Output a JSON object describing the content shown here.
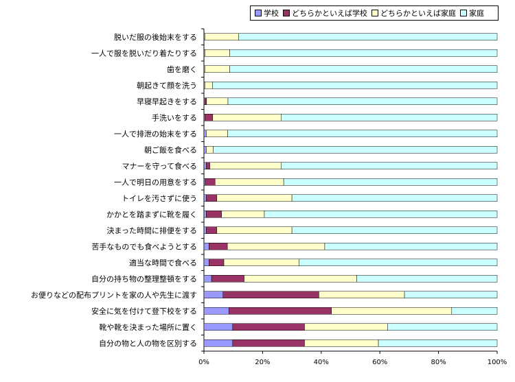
{
  "chart_data": {
    "type": "bar",
    "orientation": "horizontal",
    "stacked": "percent",
    "categories": [
      "脱いだ服の後始末をする",
      "一人で服を脱いだり着たりする",
      "歯を磨く",
      "朝起きて顔を洗う",
      "早寝早起きをする",
      "手洗いをする",
      "一人で排泄の始末をする",
      "朝ご飯を食べる",
      "マナーを守って食べる",
      "一人で明日の用意をする",
      "トイレを汚さずに使う",
      "かかとを踏まずに靴を履く",
      "決まった時間に排便をする",
      "苦手なものでも食べようとする",
      "適当な時間で食べる",
      "自分の持ち物の整理整頓をする",
      "お便りなどの配布プリントを家の人や先生に渡す",
      "安全に気を付けて登下校をする",
      "靴や靴を決まった場所に置く",
      "自分の物と人の物を区別する"
    ],
    "series": [
      {
        "name": "学校",
        "color": "#9999ff",
        "values": [
          0.3,
          0.3,
          0.3,
          0.3,
          0.3,
          0.3,
          0.8,
          0.8,
          0.8,
          0.4,
          0.8,
          0.8,
          0.8,
          1.7,
          1.7,
          2.6,
          6.5,
          8.5,
          9.8,
          9.8
        ]
      },
      {
        "name": "どちらかといえば学校",
        "color": "#993366",
        "values": [
          0.0,
          0.0,
          0.0,
          0.0,
          0.6,
          2.7,
          0.0,
          0.0,
          1.2,
          3.4,
          3.6,
          5.2,
          3.6,
          6.3,
          5.1,
          11.1,
          32.7,
          35.0,
          24.5,
          24.5
        ]
      },
      {
        "name": "どちらかといえば家庭",
        "color": "#ffffcc",
        "values": [
          11.5,
          8.5,
          8.5,
          2.6,
          7.3,
          23.4,
          7.3,
          2.4,
          24.4,
          23.4,
          25.6,
          14.6,
          25.6,
          33.2,
          25.6,
          38.4,
          29.2,
          41.0,
          28.3,
          25.2
        ]
      },
      {
        "name": "家庭",
        "color": "#ccffff",
        "values": [
          88.2,
          91.2,
          91.2,
          97.1,
          91.8,
          73.6,
          91.9,
          96.8,
          73.6,
          72.8,
          70.0,
          79.4,
          70.0,
          58.8,
          67.6,
          47.9,
          31.6,
          15.5,
          37.4,
          40.5
        ]
      }
    ],
    "xlim": [
      0,
      100
    ],
    "xticks": [
      "0%",
      "20%",
      "40%",
      "60%",
      "80%",
      "100%"
    ],
    "grid": false,
    "legend": "top-right"
  }
}
